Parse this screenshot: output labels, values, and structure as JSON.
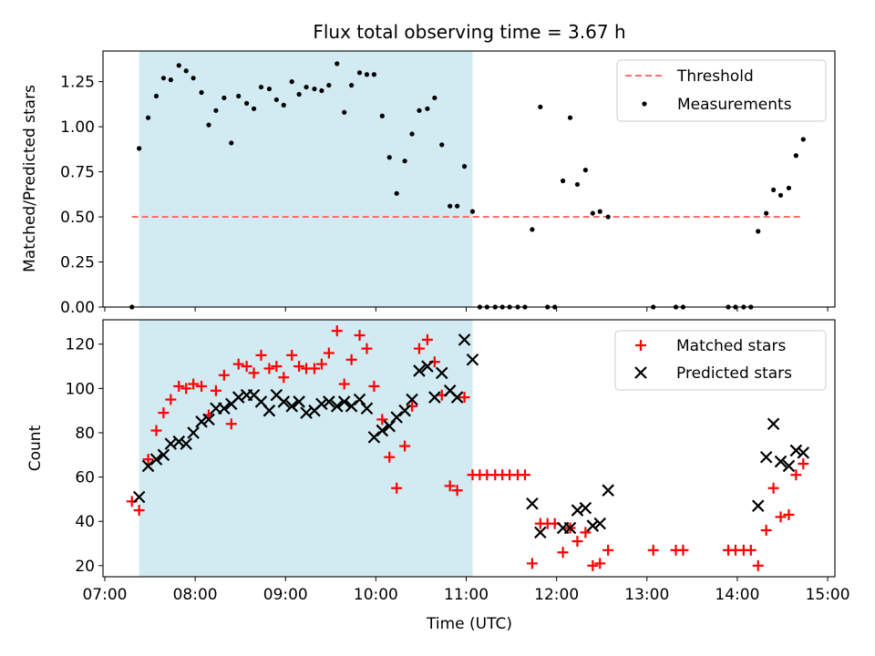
{
  "chart_data": {
    "title": "Flux total observing time = 3.67 h",
    "xlabel": "Time (UTC)",
    "x_tick_labels": [
      "07:00",
      "08:00",
      "09:00",
      "10:00",
      "11:00",
      "12:00",
      "13:00",
      "14:00",
      "15:00"
    ],
    "x_ticks_hours": [
      7,
      8,
      9,
      10,
      11,
      12,
      13,
      14,
      15
    ],
    "xlim_hours": [
      6.98,
      15.08
    ],
    "shaded_span_hours": [
      7.38,
      11.07
    ],
    "shaded_color": "#add8e6",
    "panels": [
      {
        "type": "scatter",
        "ylabel": "Matched/Predicted stars",
        "ylim": [
          0,
          1.42
        ],
        "y_tick_labels": [
          "0.00",
          "0.25",
          "0.50",
          "0.75",
          "1.00",
          "1.25"
        ],
        "y_ticks": [
          0,
          0.25,
          0.5,
          0.75,
          1.0,
          1.25
        ],
        "threshold": {
          "name": "Threshold",
          "y": 0.5,
          "x_range_hours": [
            7.3,
            14.73
          ],
          "color": "#ff6e6e"
        },
        "legend": [
          "Threshold",
          "Measurements"
        ],
        "legend_position": "top-right",
        "series": [
          {
            "name": "Measurements",
            "marker": "dot",
            "color": "#000000",
            "points": [
              [
                7.3,
                0.0
              ],
              [
                7.38,
                0.88
              ],
              [
                7.48,
                1.05
              ],
              [
                7.57,
                1.17
              ],
              [
                7.65,
                1.27
              ],
              [
                7.73,
                1.26
              ],
              [
                7.82,
                1.34
              ],
              [
                7.9,
                1.31
              ],
              [
                7.98,
                1.27
              ],
              [
                8.07,
                1.19
              ],
              [
                8.15,
                1.01
              ],
              [
                8.23,
                1.09
              ],
              [
                8.32,
                1.16
              ],
              [
                8.4,
                0.91
              ],
              [
                8.48,
                1.17
              ],
              [
                8.57,
                1.13
              ],
              [
                8.65,
                1.1
              ],
              [
                8.73,
                1.22
              ],
              [
                8.82,
                1.21
              ],
              [
                8.9,
                1.15
              ],
              [
                8.98,
                1.12
              ],
              [
                9.07,
                1.25
              ],
              [
                9.15,
                1.18
              ],
              [
                9.23,
                1.22
              ],
              [
                9.32,
                1.21
              ],
              [
                9.4,
                1.2
              ],
              [
                9.48,
                1.23
              ],
              [
                9.57,
                1.35
              ],
              [
                9.65,
                1.08
              ],
              [
                9.73,
                1.23
              ],
              [
                9.82,
                1.3
              ],
              [
                9.9,
                1.29
              ],
              [
                9.98,
                1.29
              ],
              [
                10.07,
                1.06
              ],
              [
                10.15,
                0.83
              ],
              [
                10.23,
                0.63
              ],
              [
                10.32,
                0.81
              ],
              [
                10.4,
                0.96
              ],
              [
                10.48,
                1.09
              ],
              [
                10.57,
                1.1
              ],
              [
                10.65,
                1.16
              ],
              [
                10.73,
                0.9
              ],
              [
                10.82,
                0.56
              ],
              [
                10.9,
                0.56
              ],
              [
                10.98,
                0.78
              ],
              [
                11.07,
                0.53
              ],
              [
                11.15,
                0.0
              ],
              [
                11.23,
                0.0
              ],
              [
                11.32,
                0.0
              ],
              [
                11.4,
                0.0
              ],
              [
                11.48,
                0.0
              ],
              [
                11.57,
                0.0
              ],
              [
                11.65,
                0.0
              ],
              [
                11.73,
                0.43
              ],
              [
                11.82,
                1.11
              ],
              [
                11.9,
                0.0
              ],
              [
                11.98,
                0.0
              ],
              [
                12.07,
                0.7
              ],
              [
                12.15,
                1.05
              ],
              [
                12.23,
                0.68
              ],
              [
                12.32,
                0.76
              ],
              [
                12.4,
                0.52
              ],
              [
                12.48,
                0.53
              ],
              [
                12.57,
                0.5
              ],
              [
                13.07,
                0.0
              ],
              [
                13.32,
                0.0
              ],
              [
                13.4,
                0.0
              ],
              [
                13.9,
                0.0
              ],
              [
                13.98,
                0.0
              ],
              [
                14.07,
                0.0
              ],
              [
                14.15,
                0.0
              ],
              [
                14.23,
                0.42
              ],
              [
                14.32,
                0.52
              ],
              [
                14.4,
                0.65
              ],
              [
                14.48,
                0.62
              ],
              [
                14.57,
                0.66
              ],
              [
                14.65,
                0.84
              ],
              [
                14.73,
                0.93
              ]
            ]
          }
        ]
      },
      {
        "type": "scatter",
        "ylabel": "Count",
        "ylim": [
          15,
          131
        ],
        "y_tick_labels": [
          "20",
          "40",
          "60",
          "80",
          "100",
          "120"
        ],
        "y_ticks": [
          20,
          40,
          60,
          80,
          100,
          120
        ],
        "legend": [
          "Matched stars",
          "Predicted stars"
        ],
        "legend_position": "top-right",
        "series": [
          {
            "name": "Matched stars",
            "marker": "plus",
            "color": "#ff0000",
            "points": [
              [
                7.3,
                49
              ],
              [
                7.38,
                45
              ],
              [
                7.48,
                68
              ],
              [
                7.57,
                81
              ],
              [
                7.65,
                89
              ],
              [
                7.73,
                95
              ],
              [
                7.82,
                101
              ],
              [
                7.9,
                100
              ],
              [
                7.98,
                102
              ],
              [
                8.07,
                101
              ],
              [
                8.15,
                88
              ],
              [
                8.23,
                99
              ],
              [
                8.32,
                106
              ],
              [
                8.4,
                84
              ],
              [
                8.48,
                111
              ],
              [
                8.57,
                110
              ],
              [
                8.65,
                107
              ],
              [
                8.73,
                115
              ],
              [
                8.82,
                109
              ],
              [
                8.9,
                110
              ],
              [
                8.98,
                105
              ],
              [
                9.07,
                115
              ],
              [
                9.15,
                110
              ],
              [
                9.23,
                109
              ],
              [
                9.32,
                109
              ],
              [
                9.4,
                111
              ],
              [
                9.48,
                116
              ],
              [
                9.57,
                126
              ],
              [
                9.65,
                102
              ],
              [
                9.73,
                113
              ],
              [
                9.82,
                124
              ],
              [
                9.9,
                118
              ],
              [
                9.98,
                101
              ],
              [
                10.07,
                86
              ],
              [
                10.15,
                69
              ],
              [
                10.23,
                55
              ],
              [
                10.32,
                74
              ],
              [
                10.4,
                92
              ],
              [
                10.48,
                118
              ],
              [
                10.57,
                122
              ],
              [
                10.65,
                112
              ],
              [
                10.73,
                97
              ],
              [
                10.82,
                56
              ],
              [
                10.9,
                54
              ],
              [
                10.98,
                96
              ],
              [
                11.07,
                61
              ],
              [
                11.15,
                61
              ],
              [
                11.23,
                61
              ],
              [
                11.32,
                61
              ],
              [
                11.4,
                61
              ],
              [
                11.48,
                61
              ],
              [
                11.57,
                61
              ],
              [
                11.65,
                61
              ],
              [
                11.73,
                21
              ],
              [
                11.82,
                39
              ],
              [
                11.9,
                39
              ],
              [
                11.98,
                39
              ],
              [
                12.07,
                26
              ],
              [
                12.15,
                37
              ],
              [
                12.23,
                31
              ],
              [
                12.32,
                35
              ],
              [
                12.4,
                20
              ],
              [
                12.48,
                21
              ],
              [
                12.57,
                27
              ],
              [
                13.07,
                27
              ],
              [
                13.32,
                27
              ],
              [
                13.4,
                27
              ],
              [
                13.9,
                27
              ],
              [
                13.98,
                27
              ],
              [
                14.07,
                27
              ],
              [
                14.15,
                27
              ],
              [
                14.23,
                20
              ],
              [
                14.32,
                36
              ],
              [
                14.4,
                55
              ],
              [
                14.48,
                42
              ],
              [
                14.57,
                43
              ],
              [
                14.65,
                61
              ],
              [
                14.73,
                66
              ]
            ]
          },
          {
            "name": "Predicted stars",
            "marker": "x",
            "color": "#000000",
            "points": [
              [
                7.38,
                51
              ],
              [
                7.48,
                65
              ],
              [
                7.57,
                68
              ],
              [
                7.65,
                70
              ],
              [
                7.73,
                75
              ],
              [
                7.82,
                76
              ],
              [
                7.9,
                75
              ],
              [
                7.98,
                80
              ],
              [
                8.07,
                85
              ],
              [
                8.15,
                86
              ],
              [
                8.23,
                91
              ],
              [
                8.32,
                91
              ],
              [
                8.4,
                93
              ],
              [
                8.48,
                96
              ],
              [
                8.57,
                97
              ],
              [
                8.65,
                97
              ],
              [
                8.73,
                94
              ],
              [
                8.82,
                90
              ],
              [
                8.9,
                97
              ],
              [
                8.98,
                94
              ],
              [
                9.07,
                92
              ],
              [
                9.15,
                94
              ],
              [
                9.23,
                89
              ],
              [
                9.32,
                90
              ],
              [
                9.4,
                93
              ],
              [
                9.48,
                94
              ],
              [
                9.57,
                92
              ],
              [
                9.65,
                94
              ],
              [
                9.73,
                92
              ],
              [
                9.82,
                95
              ],
              [
                9.9,
                91
              ],
              [
                9.98,
                78
              ],
              [
                10.07,
                81
              ],
              [
                10.15,
                83
              ],
              [
                10.23,
                87
              ],
              [
                10.32,
                90
              ],
              [
                10.4,
                95
              ],
              [
                10.48,
                108
              ],
              [
                10.57,
                110
              ],
              [
                10.65,
                96
              ],
              [
                10.73,
                107
              ],
              [
                10.82,
                99
              ],
              [
                10.9,
                96
              ],
              [
                10.98,
                122
              ],
              [
                11.07,
                113
              ],
              [
                11.73,
                48
              ],
              [
                11.82,
                35
              ],
              [
                12.07,
                37
              ],
              [
                12.15,
                37
              ],
              [
                12.23,
                45
              ],
              [
                12.32,
                46
              ],
              [
                12.4,
                38
              ],
              [
                12.48,
                39
              ],
              [
                12.57,
                54
              ],
              [
                14.23,
                47
              ],
              [
                14.32,
                69
              ],
              [
                14.4,
                84
              ],
              [
                14.48,
                67
              ],
              [
                14.57,
                65
              ],
              [
                14.65,
                72
              ],
              [
                14.73,
                71
              ]
            ]
          }
        ]
      }
    ]
  }
}
